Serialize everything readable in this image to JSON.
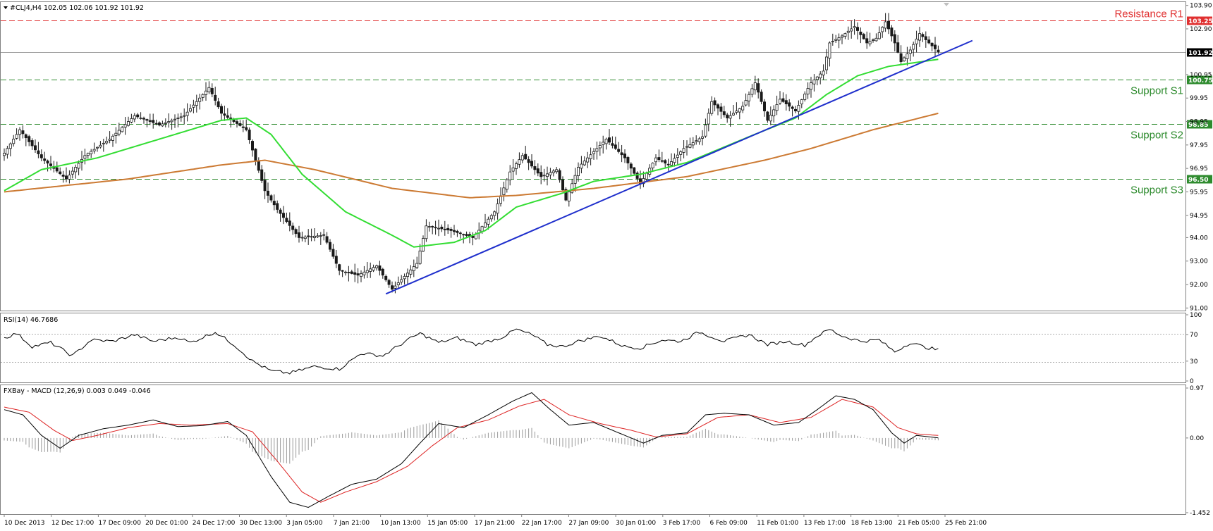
{
  "header": {
    "main_title": "#CLJ4,H4  102.05 102.06 101.92 101.92",
    "rsi_title": "RSI(14) 46.7686",
    "macd_title": "FXBay - MACD (12,26,9) 0.003 0.049 -0.046"
  },
  "colors": {
    "bull": "#1a1a1a",
    "bear": "#1a1a1a",
    "ma50": "#33dd33",
    "ma200": "#cc7a33",
    "trendline": "#1f2fcc",
    "resistance": "#e03030",
    "support": "#2e8b2e",
    "current": "#000000"
  },
  "chart_data": [
    {
      "type": "candlestick",
      "panel": "price",
      "ylim": [
        90.92,
        104.01
      ],
      "y_ticks": [
        "103.90",
        "102.90",
        "101.92",
        "100.95",
        "99.95",
        "98.95",
        "97.95",
        "96.95",
        "95.95",
        "94.95",
        "94.00",
        "93.00",
        "92.00",
        "91.00"
      ],
      "x_labels": [
        "10 Dec 2013",
        "12 Dec 17:00",
        "17 Dec 09:00",
        "20 Dec 01:00",
        "24 Dec 17:00",
        "30 Dec 13:00",
        "3 Jan 05:00",
        "7 Jan 21:00",
        "10 Jan 13:00",
        "15 Jan 05:00",
        "17 Jan 21:00",
        "22 Jan 17:00",
        "27 Jan 09:00",
        "30 Jan 01:00",
        "3 Feb 17:00",
        "6 Feb 09:00",
        "11 Feb 01:00",
        "13 Feb 17:00",
        "18 Feb 13:00",
        "21 Feb 05:00",
        "25 Feb 21:00"
      ],
      "anchors": [
        {
          "i": 0,
          "v": 97.6
        },
        {
          "i": 5,
          "v": 98.6
        },
        {
          "i": 12,
          "v": 97.4
        },
        {
          "i": 20,
          "v": 96.5
        },
        {
          "i": 26,
          "v": 97.5
        },
        {
          "i": 34,
          "v": 98.2
        },
        {
          "i": 42,
          "v": 99.2
        },
        {
          "i": 50,
          "v": 98.8
        },
        {
          "i": 58,
          "v": 99.2
        },
        {
          "i": 66,
          "v": 100.4
        },
        {
          "i": 70,
          "v": 99.3
        },
        {
          "i": 78,
          "v": 98.6
        },
        {
          "i": 84,
          "v": 96.0
        },
        {
          "i": 88,
          "v": 95.2
        },
        {
          "i": 95,
          "v": 94.0
        },
        {
          "i": 103,
          "v": 94.1
        },
        {
          "i": 108,
          "v": 92.6
        },
        {
          "i": 114,
          "v": 92.4
        },
        {
          "i": 120,
          "v": 92.8
        },
        {
          "i": 125,
          "v": 91.8
        },
        {
          "i": 133,
          "v": 92.9
        },
        {
          "i": 136,
          "v": 94.5
        },
        {
          "i": 144,
          "v": 94.3
        },
        {
          "i": 151,
          "v": 94.0
        },
        {
          "i": 158,
          "v": 95.1
        },
        {
          "i": 163,
          "v": 96.8
        },
        {
          "i": 167,
          "v": 97.5
        },
        {
          "i": 173,
          "v": 96.6
        },
        {
          "i": 178,
          "v": 96.9
        },
        {
          "i": 181,
          "v": 95.6
        },
        {
          "i": 185,
          "v": 97.0
        },
        {
          "i": 194,
          "v": 98.2
        },
        {
          "i": 200,
          "v": 97.4
        },
        {
          "i": 205,
          "v": 96.3
        },
        {
          "i": 210,
          "v": 97.4
        },
        {
          "i": 214,
          "v": 97.1
        },
        {
          "i": 219,
          "v": 97.8
        },
        {
          "i": 225,
          "v": 98.3
        },
        {
          "i": 228,
          "v": 99.8
        },
        {
          "i": 233,
          "v": 99.1
        },
        {
          "i": 238,
          "v": 99.6
        },
        {
          "i": 242,
          "v": 100.6
        },
        {
          "i": 246,
          "v": 99.0
        },
        {
          "i": 250,
          "v": 99.9
        },
        {
          "i": 255,
          "v": 99.4
        },
        {
          "i": 260,
          "v": 100.6
        },
        {
          "i": 264,
          "v": 101.1
        },
        {
          "i": 266,
          "v": 102.3
        },
        {
          "i": 270,
          "v": 102.6
        },
        {
          "i": 274,
          "v": 103.0
        },
        {
          "i": 278,
          "v": 102.3
        },
        {
          "i": 281,
          "v": 102.5
        },
        {
          "i": 284,
          "v": 103.2
        },
        {
          "i": 287,
          "v": 102.3
        },
        {
          "i": 289,
          "v": 101.5
        },
        {
          "i": 292,
          "v": 102.0
        },
        {
          "i": 295,
          "v": 102.7
        },
        {
          "i": 298,
          "v": 102.3
        },
        {
          "i": 301,
          "v": 101.92
        }
      ],
      "ma50_anchors": [
        {
          "i": 0,
          "v": 96.0
        },
        {
          "i": 12,
          "v": 96.9
        },
        {
          "i": 30,
          "v": 97.4
        },
        {
          "i": 50,
          "v": 98.2
        },
        {
          "i": 70,
          "v": 99.0
        },
        {
          "i": 78,
          "v": 99.1
        },
        {
          "i": 86,
          "v": 98.4
        },
        {
          "i": 96,
          "v": 96.7
        },
        {
          "i": 110,
          "v": 95.1
        },
        {
          "i": 125,
          "v": 94.1
        },
        {
          "i": 132,
          "v": 93.6
        },
        {
          "i": 145,
          "v": 93.8
        },
        {
          "i": 155,
          "v": 94.3
        },
        {
          "i": 165,
          "v": 95.3
        },
        {
          "i": 180,
          "v": 95.9
        },
        {
          "i": 190,
          "v": 96.4
        },
        {
          "i": 205,
          "v": 96.7
        },
        {
          "i": 220,
          "v": 97.2
        },
        {
          "i": 240,
          "v": 98.3
        },
        {
          "i": 255,
          "v": 99.1
        },
        {
          "i": 265,
          "v": 100.1
        },
        {
          "i": 275,
          "v": 100.9
        },
        {
          "i": 285,
          "v": 101.3
        },
        {
          "i": 301,
          "v": 101.6
        }
      ],
      "ma200_anchors": [
        {
          "i": 0,
          "v": 95.95
        },
        {
          "i": 40,
          "v": 96.5
        },
        {
          "i": 70,
          "v": 97.1
        },
        {
          "i": 84,
          "v": 97.3
        },
        {
          "i": 100,
          "v": 96.9
        },
        {
          "i": 125,
          "v": 96.1
        },
        {
          "i": 150,
          "v": 95.7
        },
        {
          "i": 165,
          "v": 95.8
        },
        {
          "i": 190,
          "v": 96.1
        },
        {
          "i": 220,
          "v": 96.6
        },
        {
          "i": 245,
          "v": 97.3
        },
        {
          "i": 260,
          "v": 97.8
        },
        {
          "i": 280,
          "v": 98.6
        },
        {
          "i": 301,
          "v": 99.3
        }
      ],
      "trendline": {
        "from": {
          "i": 123,
          "v": 91.6
        },
        "to": {
          "i": 312,
          "v": 102.4
        }
      },
      "levels": [
        {
          "name": "Resistance R1",
          "value": "103.25",
          "color": "#e03030"
        },
        {
          "name": "Support S1",
          "value": "100.75",
          "color": "#2e8b2e"
        },
        {
          "name": "Support S2",
          "value": "98.85",
          "color": "#2e8b2e"
        },
        {
          "name": "Support S3",
          "value": "96.50",
          "color": "#2e8b2e"
        }
      ],
      "current_price": "101.92"
    },
    {
      "type": "line",
      "panel": "rsi",
      "name": "RSI(14)",
      "ylim": [
        0,
        100
      ],
      "y_ticks": [
        "100",
        "70",
        "30",
        "0"
      ],
      "anchors": [
        {
          "i": 0,
          "v": 65
        },
        {
          "i": 4,
          "v": 72
        },
        {
          "i": 9,
          "v": 52
        },
        {
          "i": 15,
          "v": 58
        },
        {
          "i": 22,
          "v": 38
        },
        {
          "i": 28,
          "v": 62
        },
        {
          "i": 35,
          "v": 60
        },
        {
          "i": 42,
          "v": 70
        },
        {
          "i": 48,
          "v": 60
        },
        {
          "i": 56,
          "v": 66
        },
        {
          "i": 60,
          "v": 58
        },
        {
          "i": 68,
          "v": 74
        },
        {
          "i": 74,
          "v": 55
        },
        {
          "i": 80,
          "v": 30
        },
        {
          "i": 86,
          "v": 15
        },
        {
          "i": 92,
          "v": 12
        },
        {
          "i": 100,
          "v": 22
        },
        {
          "i": 108,
          "v": 18
        },
        {
          "i": 115,
          "v": 42
        },
        {
          "i": 122,
          "v": 38
        },
        {
          "i": 130,
          "v": 62
        },
        {
          "i": 134,
          "v": 72
        },
        {
          "i": 140,
          "v": 58
        },
        {
          "i": 146,
          "v": 65
        },
        {
          "i": 152,
          "v": 55
        },
        {
          "i": 160,
          "v": 65
        },
        {
          "i": 165,
          "v": 78
        },
        {
          "i": 170,
          "v": 70
        },
        {
          "i": 175,
          "v": 55
        },
        {
          "i": 180,
          "v": 52
        },
        {
          "i": 185,
          "v": 60
        },
        {
          "i": 192,
          "v": 68
        },
        {
          "i": 200,
          "v": 52
        },
        {
          "i": 205,
          "v": 50
        },
        {
          "i": 212,
          "v": 62
        },
        {
          "i": 218,
          "v": 60
        },
        {
          "i": 224,
          "v": 74
        },
        {
          "i": 232,
          "v": 60
        },
        {
          "i": 240,
          "v": 70
        },
        {
          "i": 246,
          "v": 55
        },
        {
          "i": 252,
          "v": 60
        },
        {
          "i": 258,
          "v": 54
        },
        {
          "i": 262,
          "v": 68
        },
        {
          "i": 266,
          "v": 78
        },
        {
          "i": 270,
          "v": 68
        },
        {
          "i": 276,
          "v": 60
        },
        {
          "i": 282,
          "v": 62
        },
        {
          "i": 287,
          "v": 44
        },
        {
          "i": 292,
          "v": 58
        },
        {
          "i": 296,
          "v": 52
        },
        {
          "i": 301,
          "v": 47
        }
      ]
    },
    {
      "type": "line",
      "panel": "macd",
      "name": "FXBay - MACD (12,26,9)",
      "ylim": [
        -1.452,
        0.97
      ],
      "y_ticks": [
        "0.97",
        "0.00",
        "-1.452"
      ],
      "macd_anchors": [
        {
          "i": 0,
          "v": 0.55
        },
        {
          "i": 6,
          "v": 0.45
        },
        {
          "i": 12,
          "v": 0.05
        },
        {
          "i": 18,
          "v": -0.2
        },
        {
          "i": 24,
          "v": 0.05
        },
        {
          "i": 32,
          "v": 0.18
        },
        {
          "i": 40,
          "v": 0.25
        },
        {
          "i": 48,
          "v": 0.35
        },
        {
          "i": 56,
          "v": 0.22
        },
        {
          "i": 64,
          "v": 0.24
        },
        {
          "i": 72,
          "v": 0.32
        },
        {
          "i": 78,
          "v": 0.05
        },
        {
          "i": 86,
          "v": -0.75
        },
        {
          "i": 92,
          "v": -1.25
        },
        {
          "i": 98,
          "v": -1.35
        },
        {
          "i": 104,
          "v": -1.15
        },
        {
          "i": 112,
          "v": -0.9
        },
        {
          "i": 120,
          "v": -0.8
        },
        {
          "i": 128,
          "v": -0.5
        },
        {
          "i": 134,
          "v": -0.1
        },
        {
          "i": 140,
          "v": 0.28
        },
        {
          "i": 148,
          "v": 0.2
        },
        {
          "i": 156,
          "v": 0.45
        },
        {
          "i": 164,
          "v": 0.72
        },
        {
          "i": 170,
          "v": 0.88
        },
        {
          "i": 176,
          "v": 0.55
        },
        {
          "i": 182,
          "v": 0.25
        },
        {
          "i": 190,
          "v": 0.3
        },
        {
          "i": 198,
          "v": 0.1
        },
        {
          "i": 206,
          "v": -0.1
        },
        {
          "i": 212,
          "v": 0.05
        },
        {
          "i": 220,
          "v": 0.1
        },
        {
          "i": 226,
          "v": 0.45
        },
        {
          "i": 232,
          "v": 0.48
        },
        {
          "i": 240,
          "v": 0.45
        },
        {
          "i": 248,
          "v": 0.25
        },
        {
          "i": 256,
          "v": 0.3
        },
        {
          "i": 262,
          "v": 0.55
        },
        {
          "i": 268,
          "v": 0.82
        },
        {
          "i": 274,
          "v": 0.75
        },
        {
          "i": 280,
          "v": 0.55
        },
        {
          "i": 286,
          "v": 0.1
        },
        {
          "i": 290,
          "v": -0.1
        },
        {
          "i": 294,
          "v": 0.05
        },
        {
          "i": 301,
          "v": 0.003
        }
      ],
      "signal_anchors": [
        {
          "i": 0,
          "v": 0.6
        },
        {
          "i": 8,
          "v": 0.5
        },
        {
          "i": 16,
          "v": 0.15
        },
        {
          "i": 22,
          "v": -0.05
        },
        {
          "i": 30,
          "v": 0.05
        },
        {
          "i": 40,
          "v": 0.2
        },
        {
          "i": 50,
          "v": 0.28
        },
        {
          "i": 60,
          "v": 0.25
        },
        {
          "i": 72,
          "v": 0.28
        },
        {
          "i": 80,
          "v": 0.12
        },
        {
          "i": 88,
          "v": -0.45
        },
        {
          "i": 96,
          "v": -1.05
        },
        {
          "i": 102,
          "v": -1.25
        },
        {
          "i": 110,
          "v": -1.05
        },
        {
          "i": 120,
          "v": -0.85
        },
        {
          "i": 130,
          "v": -0.55
        },
        {
          "i": 138,
          "v": -0.15
        },
        {
          "i": 146,
          "v": 0.2
        },
        {
          "i": 156,
          "v": 0.35
        },
        {
          "i": 166,
          "v": 0.62
        },
        {
          "i": 174,
          "v": 0.75
        },
        {
          "i": 182,
          "v": 0.45
        },
        {
          "i": 192,
          "v": 0.28
        },
        {
          "i": 202,
          "v": 0.15
        },
        {
          "i": 210,
          "v": 0.02
        },
        {
          "i": 220,
          "v": 0.08
        },
        {
          "i": 230,
          "v": 0.4
        },
        {
          "i": 240,
          "v": 0.45
        },
        {
          "i": 250,
          "v": 0.3
        },
        {
          "i": 260,
          "v": 0.4
        },
        {
          "i": 270,
          "v": 0.75
        },
        {
          "i": 280,
          "v": 0.6
        },
        {
          "i": 288,
          "v": 0.2
        },
        {
          "i": 294,
          "v": 0.08
        },
        {
          "i": 301,
          "v": 0.049
        }
      ]
    }
  ]
}
